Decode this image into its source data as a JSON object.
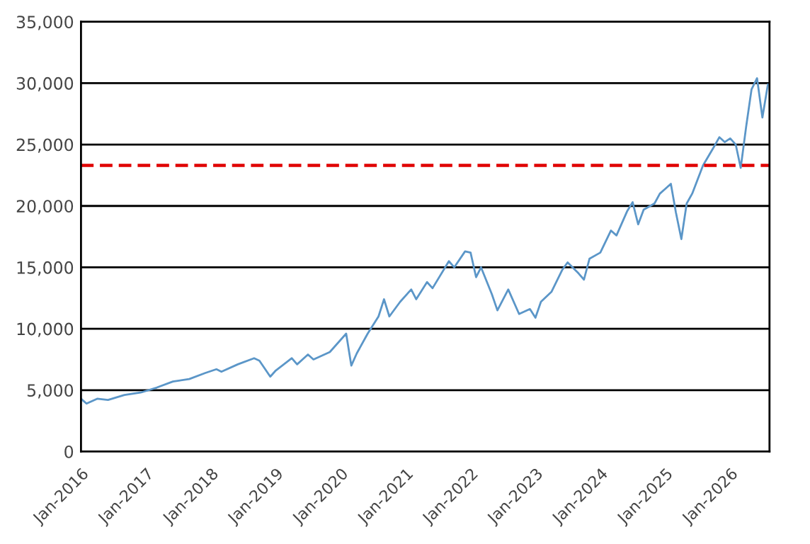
{
  "chart_data": {
    "type": "line",
    "x": [
      "2016-01",
      "2016-02",
      "2016-04",
      "2016-06",
      "2016-09",
      "2016-12",
      "2017-03",
      "2017-06",
      "2017-09",
      "2017-12",
      "2018-02",
      "2018-03",
      "2018-06",
      "2018-09",
      "2018-10",
      "2018-12",
      "2019-01",
      "2019-04",
      "2019-05",
      "2019-07",
      "2019-08",
      "2019-11",
      "2020-02",
      "2020-03",
      "2020-04",
      "2020-06",
      "2020-08",
      "2020-09",
      "2020-10",
      "2020-12",
      "2021-02",
      "2021-03",
      "2021-05",
      "2021-06",
      "2021-09",
      "2021-10",
      "2021-12",
      "2022-01",
      "2022-02",
      "2022-03",
      "2022-05",
      "2022-06",
      "2022-08",
      "2022-10",
      "2022-12",
      "2023-01",
      "2023-02",
      "2023-04",
      "2023-06",
      "2023-07",
      "2023-09",
      "2023-10",
      "2023-11",
      "2024-01",
      "2024-03",
      "2024-04",
      "2024-06",
      "2024-07",
      "2024-08",
      "2024-09",
      "2024-11",
      "2024-12",
      "2025-01",
      "2025-02",
      "2025-03",
      "2025-04",
      "2025-05",
      "2025-06",
      "2025-08",
      "2025-10",
      "2025-11",
      "2025-12",
      "2026-01",
      "2026-02",
      "2026-03",
      "2026-04",
      "2026-05",
      "2026-06",
      "2026-07",
      "2026-08"
    ],
    "series": [
      {
        "color": "#5b96c8",
        "values": [
          4300,
          3900,
          4300,
          4200,
          4600,
          4800,
          5200,
          5700,
          5900,
          6400,
          6700,
          6500,
          7100,
          7600,
          7400,
          6100,
          6600,
          7600,
          7100,
          7900,
          7500,
          8100,
          9600,
          7000,
          8000,
          9600,
          11000,
          12400,
          11000,
          12200,
          13200,
          12400,
          13800,
          13300,
          15500,
          15000,
          16300,
          16200,
          14200,
          15000,
          12800,
          11500,
          13200,
          11200,
          11600,
          10900,
          12200,
          13000,
          14800,
          15400,
          14500,
          14000,
          15700,
          16200,
          18000,
          17600,
          19600,
          20300,
          18500,
          19700,
          20200,
          21000,
          21400,
          21800,
          19500,
          17300,
          20200,
          21000,
          23300,
          24800,
          25600,
          25200,
          25500,
          25000,
          23100,
          26500,
          29500,
          30400,
          27200,
          29900
        ]
      }
    ],
    "xlim": [
      "2016-01-01",
      "2026-08-10"
    ],
    "xticks": [
      {
        "value": "2016-01-01",
        "label": "Jan-2016"
      },
      {
        "value": "2017-01-01",
        "label": "Jan-2017"
      },
      {
        "value": "2018-01-01",
        "label": "Jan-2018"
      },
      {
        "value": "2019-01-01",
        "label": "Jan-2019"
      },
      {
        "value": "2020-01-01",
        "label": "Jan-2020"
      },
      {
        "value": "2021-01-01",
        "label": "Jan-2021"
      },
      {
        "value": "2022-01-01",
        "label": "Jan-2022"
      },
      {
        "value": "2023-01-01",
        "label": "Jan-2023"
      },
      {
        "value": "2024-01-01",
        "label": "Jan-2024"
      },
      {
        "value": "2025-01-01",
        "label": "Jan-2025"
      },
      {
        "value": "2026-01-01",
        "label": "Jan-2026"
      }
    ],
    "ylim": [
      0,
      35000
    ],
    "yticks": [
      {
        "value": 0,
        "label": "0"
      },
      {
        "value": 5000,
        "label": "5,000"
      },
      {
        "value": 10000,
        "label": "10,000"
      },
      {
        "value": 15000,
        "label": "15,000"
      },
      {
        "value": 20000,
        "label": "20,000"
      },
      {
        "value": 25000,
        "label": "25,000"
      },
      {
        "value": 30000,
        "label": "30,000"
      },
      {
        "value": 35000,
        "label": "35,000"
      }
    ],
    "ref_lines": [
      {
        "axis": "y",
        "value": 23300,
        "label": null,
        "color": "#e00000",
        "line_style": "dashed"
      }
    ],
    "grid": "y",
    "line_style": "solid"
  }
}
